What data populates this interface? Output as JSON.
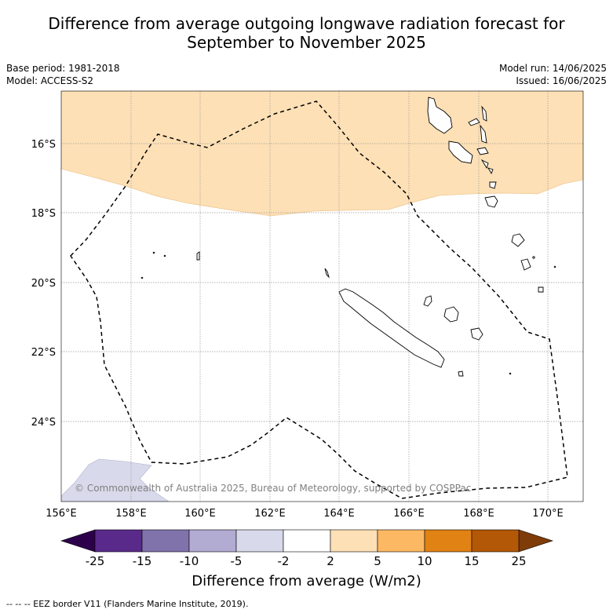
{
  "title_line1": "Difference from average outgoing longwave radiation forecast for",
  "title_line2": "September to November 2025",
  "meta_left": [
    "Base period: 1981-2018",
    "Model: ACCESS-S2"
  ],
  "meta_right": [
    "Model run: 14/06/2025",
    "Issued: 16/06/2025"
  ],
  "lat_labels": [
    "16°S",
    "18°S",
    "20°S",
    "22°S",
    "24°S"
  ],
  "lon_labels": [
    "156°E",
    "158°E",
    "160°E",
    "162°E",
    "164°E",
    "166°E",
    "168°E",
    "170°E"
  ],
  "copyright": "© Commonwealth of Australia 2025, Bureau of Meteorology, supported by COSPPac",
  "colorbar": {
    "title": "Difference from average (W/m2)",
    "tick_labels": [
      "-25",
      "-15",
      "-10",
      "-5",
      "-2",
      "2",
      "5",
      "10",
      "15",
      "25"
    ],
    "colors": [
      "#592a8a",
      "#8073ac",
      "#b2abd2",
      "#d8daeb",
      "#ffffff",
      "#fee0b6",
      "#fdb863",
      "#e08214",
      "#b35806"
    ],
    "under_color": "#2d004b",
    "over_color": "#7f3b08"
  },
  "footer": "--  --  -- EEZ border V11 (Flanders Marine Institute, 2019).",
  "colors": {
    "positive_anomaly_fill": "#fee0b6",
    "negative_anomaly_fill": "#d8daeb",
    "grid": "#999999"
  }
}
